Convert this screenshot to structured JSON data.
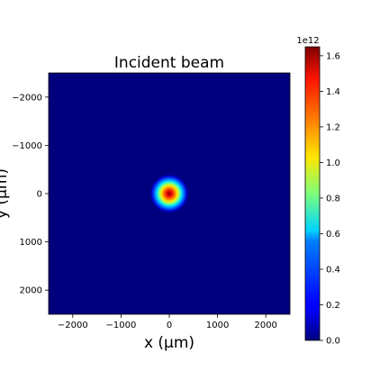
{
  "chart_data": {
    "type": "heatmap",
    "title": "Incident beam",
    "xlabel": "x (μm)",
    "ylabel": "y (μm)",
    "xlim": [
      -2500,
      2500
    ],
    "ylim": [
      2500,
      -2500
    ],
    "x_ticks": [
      -2000,
      -1000,
      0,
      1000,
      2000
    ],
    "x_tick_labels": [
      "−2000",
      "−1000",
      "0",
      "1000",
      "2000"
    ],
    "y_ticks": [
      -2000,
      -1000,
      0,
      1000,
      2000
    ],
    "y_tick_labels": [
      "−2000",
      "−1000",
      "0",
      "1000",
      "2000"
    ],
    "colormap": "jet",
    "beam": {
      "shape": "gaussian",
      "center": [
        0,
        0
      ],
      "peak": 1650000000000.0,
      "sigma_um": 180
    },
    "colorbar": {
      "min": 0.0,
      "max": 1.65,
      "offset_label": "1e12",
      "ticks": [
        0.0,
        0.2,
        0.4,
        0.6,
        0.8,
        1.0,
        1.2,
        1.4,
        1.6
      ],
      "tick_labels": [
        "0.0",
        "0.2",
        "0.4",
        "0.6",
        "0.8",
        "1.0",
        "1.2",
        "1.4",
        "1.6"
      ]
    },
    "grid": false
  }
}
